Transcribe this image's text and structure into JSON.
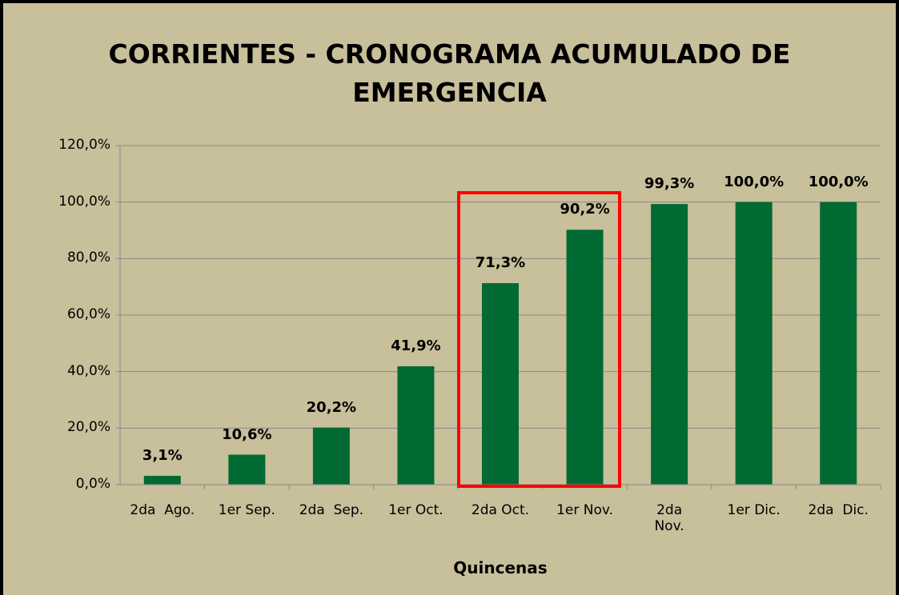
{
  "chart_data": {
    "type": "bar",
    "title": "CORRIENTES - CRONOGRAMA ACUMULADO DE\nEMERGENCIA",
    "x_label": "Quincenas",
    "categories": [
      "2da  Ago.",
      "1er Sep.",
      "2da  Sep.",
      "1er Oct.",
      "2da Oct.",
      "1er Nov.",
      "2da\nNov.",
      "1er Dic.",
      "2da  Dic."
    ],
    "values": [
      3.1,
      10.6,
      20.2,
      41.9,
      71.3,
      90.2,
      99.3,
      100,
      100
    ],
    "value_labels": [
      "3,1%",
      "10,6%",
      "20,2%",
      "41,9%",
      "71,3%",
      "90,2%",
      "99,3%",
      "100,0%",
      "100,0%"
    ],
    "color": "#006a32",
    "ylim": [
      0,
      120
    ],
    "yticks": [
      {
        "value": 0,
        "label": "0,0%"
      },
      {
        "value": 20,
        "label": "20,0%"
      },
      {
        "value": 40,
        "label": "40,0%"
      },
      {
        "value": 60,
        "label": "60,0%"
      },
      {
        "value": 80,
        "label": "80,0%"
      },
      {
        "value": 100,
        "label": "100,0%"
      },
      {
        "value": 120,
        "label": "120,0%"
      }
    ],
    "grid": true
  }
}
